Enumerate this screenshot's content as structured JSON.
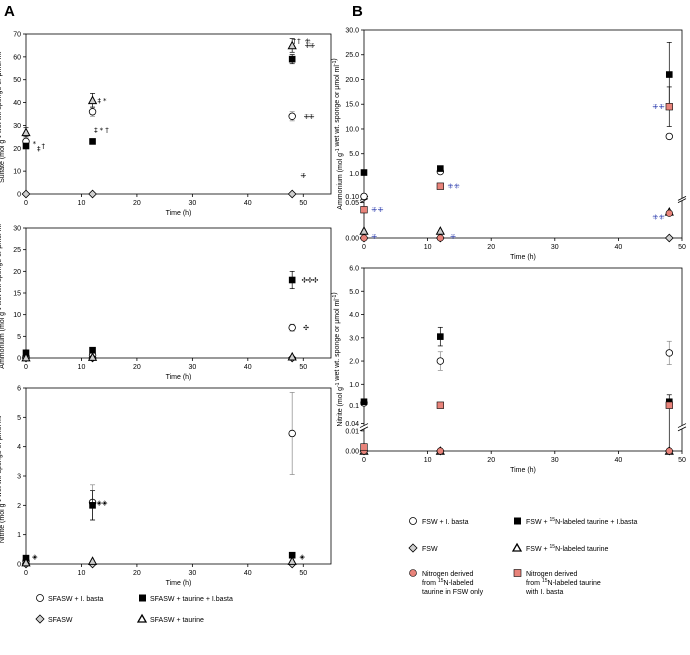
{
  "panels": {
    "A": "A",
    "B": "B"
  },
  "colors": {
    "salmon": "#e8837a",
    "grey": "#cfcfcf",
    "black": "#000000",
    "mark_blue": "#2233aa"
  },
  "chart_data": [
    {
      "id": "A1",
      "type": "scatter",
      "title": "",
      "xlabel": "Time (h)",
      "ylabel": "Sulfate (mol g-1 wet wt. sponge or μmol ml-1)",
      "xlim": [
        0,
        55
      ],
      "ylim": [
        0,
        70
      ],
      "xticks": [
        0,
        10,
        20,
        30,
        40,
        50
      ],
      "yticks": [
        0,
        10,
        20,
        30,
        40,
        50,
        60,
        70
      ],
      "series": [
        {
          "name": "SFASW + I. basta",
          "marker": "circle",
          "points": [
            [
              0,
              23,
              2
            ],
            [
              12,
              36,
              2
            ],
            [
              48,
              34,
              2
            ]
          ]
        },
        {
          "name": "SFASW + taurine + I.basta",
          "marker": "square",
          "points": [
            [
              0,
              21,
              1
            ],
            [
              12,
              23,
              1
            ],
            [
              48,
              59,
              2
            ]
          ]
        },
        {
          "name": "SFASW",
          "marker": "diamond",
          "points": [
            [
              0,
              0,
              0
            ],
            [
              12,
              0,
              0
            ],
            [
              48,
              0,
              0
            ]
          ]
        },
        {
          "name": "SFASW + taurine",
          "marker": "triangle",
          "points": [
            [
              0,
              27,
              2
            ],
            [
              12,
              41,
              3
            ],
            [
              48,
              65,
              3
            ]
          ]
        }
      ],
      "annotations": [
        {
          "text": "*",
          "x": 1.5,
          "y": 22
        },
        {
          "text": "‡",
          "x": 2.3,
          "y": 20
        },
        {
          "text": "†",
          "x": 3.1,
          "y": 21
        },
        {
          "text": "‡",
          "x": 13.2,
          "y": 41
        },
        {
          "text": "*",
          "x": 14.2,
          "y": 41
        },
        {
          "text": "‡",
          "x": 12.6,
          "y": 28
        },
        {
          "text": "*",
          "x": 13.6,
          "y": 28
        },
        {
          "text": "†",
          "x": 14.6,
          "y": 28
        },
        {
          "text": "†",
          "x": 48.4,
          "y": 67
        },
        {
          "text": "†",
          "x": 49.2,
          "y": 67
        },
        {
          "text": "⁜",
          "x": 50.8,
          "y": 67
        },
        {
          "text": "⁜",
          "x": 50.8,
          "y": 65
        },
        {
          "text": "⁜",
          "x": 51.6,
          "y": 65
        },
        {
          "text": "⁜",
          "x": 50.6,
          "y": 34
        },
        {
          "text": "⁜",
          "x": 51.5,
          "y": 34
        },
        {
          "text": "⁜",
          "x": 50,
          "y": 8
        }
      ]
    },
    {
      "id": "A2",
      "type": "scatter",
      "title": "",
      "xlabel": "Time (h)",
      "ylabel": "Ammonium (mol g-1 wet wt. sponge or μmol ml-1)",
      "xlim": [
        0,
        55
      ],
      "ylim": [
        0,
        30
      ],
      "xticks": [
        0,
        10,
        20,
        30,
        40,
        50
      ],
      "yticks": [
        0,
        5,
        10,
        15,
        20,
        25,
        30
      ],
      "series": [
        {
          "name": "SFASW + I. basta",
          "marker": "circle",
          "points": [
            [
              0,
              0.3,
              0
            ],
            [
              12,
              0.6,
              0
            ],
            [
              48,
              7,
              0.8
            ]
          ]
        },
        {
          "name": "SFASW + taurine + I.basta",
          "marker": "square",
          "points": [
            [
              0,
              1.2,
              0
            ],
            [
              12,
              1.8,
              0
            ],
            [
              48,
              18,
              2
            ]
          ]
        },
        {
          "name": "SFASW",
          "marker": "diamond",
          "points": [
            [
              0,
              0,
              0
            ],
            [
              12,
              0,
              0
            ],
            [
              48,
              0,
              0
            ]
          ]
        },
        {
          "name": "SFASW + taurine",
          "marker": "triangle",
          "points": [
            [
              0,
              0.1,
              0
            ],
            [
              12,
              0.2,
              0
            ],
            [
              48,
              0.3,
              0
            ]
          ]
        }
      ],
      "annotations": [
        {
          "text": "✣",
          "x": 50.5,
          "y": 7
        },
        {
          "text": "✣",
          "x": 50.2,
          "y": 18
        },
        {
          "text": "✣",
          "x": 51.2,
          "y": 18
        },
        {
          "text": "✣",
          "x": 52.2,
          "y": 18
        }
      ]
    },
    {
      "id": "A3",
      "type": "scatter",
      "title": "",
      "xlabel": "Time (h)",
      "ylabel": "Nitrite (mol g-1 wet wt. sponge or μmol ml-1)",
      "xlim": [
        0,
        55
      ],
      "ylim": [
        0,
        6
      ],
      "xticks": [
        0,
        10,
        20,
        30,
        40,
        50
      ],
      "yticks": [
        0,
        1,
        2,
        3,
        4,
        5,
        6
      ],
      "series": [
        {
          "name": "SFASW + I. basta",
          "marker": "circle",
          "points": [
            [
              0,
              0.1,
              0
            ],
            [
              12,
              2.1,
              0.6
            ],
            [
              48,
              4.45,
              1.4
            ]
          ]
        },
        {
          "name": "SFASW + taurine + I.basta",
          "marker": "square",
          "points": [
            [
              0,
              0.2,
              0
            ],
            [
              12,
              2.0,
              0.5
            ],
            [
              48,
              0.3,
              0
            ]
          ]
        },
        {
          "name": "SFASW",
          "marker": "diamond",
          "points": [
            [
              0,
              0,
              0
            ],
            [
              12,
              0,
              0
            ],
            [
              48,
              0,
              0
            ]
          ]
        },
        {
          "name": "SFASW + taurine",
          "marker": "triangle",
          "points": [
            [
              0,
              0.05,
              0
            ],
            [
              12,
              0.1,
              0
            ],
            [
              48,
              0.1,
              0
            ]
          ]
        }
      ],
      "annotations": [
        {
          "text": "◈",
          "x": 1.6,
          "y": 0.25
        },
        {
          "text": "◈",
          "x": 13.2,
          "y": 2.1
        },
        {
          "text": "◈",
          "x": 14.2,
          "y": 2.1
        },
        {
          "text": "◈",
          "x": 49.8,
          "y": 0.25
        }
      ]
    },
    {
      "id": "B1",
      "type": "scatter",
      "title": "",
      "xlabel": "Time (h)",
      "ylabel": "Ammonium (mol g-1 wet wt. sponge or μmol ml-1)",
      "xlim": [
        0,
        50
      ],
      "ylim": [
        0,
        30
      ],
      "axis_break": [
        0.05,
        0.1
      ],
      "xticks": [
        0,
        10,
        20,
        30,
        40,
        50
      ],
      "yticks": [
        "0.00",
        "0.05",
        "0.10",
        "1.0",
        "5.0",
        "10.0",
        "15.0",
        "20.0",
        "25.0",
        "30.0"
      ],
      "series": [
        {
          "name": "FSW + I. basta",
          "marker": "circle",
          "points": [
            [
              0,
              0.1,
              0
            ],
            [
              12,
              1.4,
              0
            ],
            [
              48,
              8.5,
              0
            ]
          ]
        },
        {
          "name": "FSW + 15N-labeled taurine + I.basta",
          "marker": "square",
          "points": [
            [
              0,
              1.2,
              0
            ],
            [
              12,
              2.0,
              0
            ],
            [
              48,
              21,
              6.5
            ]
          ]
        },
        {
          "name": "FSW",
          "marker": "diamond",
          "points": [
            [
              0,
              0,
              0
            ],
            [
              12,
              0,
              0
            ],
            [
              48,
              0,
              0
            ]
          ]
        },
        {
          "name": "FSW + 15N-labeled taurine",
          "marker": "triangle",
          "points": [
            [
              0,
              0.01,
              0
            ],
            [
              12,
              0.01,
              0
            ],
            [
              48,
              0.037,
              0
            ]
          ]
        },
        {
          "name": "Nitrogen derived from 15N-labeled taurine in FSW only",
          "marker": "salmon-circle",
          "points": [
            [
              0,
              0,
              0
            ],
            [
              12,
              0,
              0
            ],
            [
              48,
              0.035,
              0
            ]
          ]
        },
        {
          "name": "Nitrogen derived from 15N-labeled taurine with I. basta",
          "marker": "salmon-square",
          "points": [
            [
              0,
              0.04,
              0
            ],
            [
              12,
              0.5,
              0
            ],
            [
              48,
              14.5,
              4
            ]
          ]
        }
      ],
      "annotations": [
        {
          "text": "⁜",
          "x": 1.6,
          "y": 0.04
        },
        {
          "text": "⁜",
          "x": 2.6,
          "y": 0.04
        },
        {
          "text": "⁜",
          "x": 1.6,
          "y": 0.002
        },
        {
          "text": "⁜",
          "x": 13.6,
          "y": 0.5
        },
        {
          "text": "⁜",
          "x": 14.6,
          "y": 0.5
        },
        {
          "text": "⁜",
          "x": 14.0,
          "y": 0.002
        },
        {
          "text": "⁜",
          "x": 45.8,
          "y": 14.5
        },
        {
          "text": "⁜",
          "x": 46.8,
          "y": 14.5
        },
        {
          "text": "⁜",
          "x": 45.8,
          "y": 0.03
        },
        {
          "text": "⁜",
          "x": 46.8,
          "y": 0.03
        }
      ]
    },
    {
      "id": "B2",
      "type": "scatter",
      "title": "",
      "xlabel": "Time (h)",
      "ylabel": "Nitrite (mol g-1 wet wt. sponge or μmol ml-1)",
      "xlim": [
        0,
        50
      ],
      "ylim": [
        0,
        6
      ],
      "axis_break": [
        0.01,
        0.04
      ],
      "xticks": [
        0,
        10,
        20,
        30,
        40,
        50
      ],
      "yticks": [
        "0.00",
        "0.01",
        "0.04",
        "0.1",
        "1.0",
        "2.0",
        "3.0",
        "4.0",
        "5.0",
        "6.0"
      ],
      "series": [
        {
          "name": "FSW + I. basta",
          "marker": "circle",
          "points": [
            [
              0,
              0.2,
              0
            ],
            [
              12,
              2.0,
              0.4
            ],
            [
              48,
              2.35,
              0.5
            ]
          ]
        },
        {
          "name": "FSW + 15N-labeled taurine + I.basta",
          "marker": "square",
          "points": [
            [
              0,
              0.25,
              0
            ],
            [
              12,
              3.05,
              0.4
            ],
            [
              48,
              0.25,
              0.3
            ]
          ]
        },
        {
          "name": "FSW",
          "marker": "diamond",
          "points": [
            [
              0,
              0,
              0
            ],
            [
              12,
              0,
              0
            ],
            [
              48,
              0,
              0
            ]
          ]
        },
        {
          "name": "FSW + 15N-labeled taurine",
          "marker": "triangle",
          "points": [
            [
              0,
              0,
              0
            ],
            [
              12,
              0,
              0
            ],
            [
              48,
              0,
              0
            ]
          ]
        },
        {
          "name": "Nitrogen derived from 15N-labeled taurine in FSW only",
          "marker": "salmon-circle",
          "points": [
            [
              0,
              0,
              0
            ],
            [
              12,
              0,
              0
            ],
            [
              48,
              0,
              0
            ]
          ]
        },
        {
          "name": "Nitrogen derived from 15N-labeled taurine with I. basta",
          "marker": "salmon-square",
          "points": [
            [
              0,
              0.002,
              0
            ],
            [
              12,
              0.1,
              0
            ],
            [
              48,
              0.1,
              0
            ]
          ]
        }
      ],
      "annotations": []
    }
  ],
  "legendA": {
    "circle": "SFASW + I. basta",
    "square": "SFASW + taurine + I.basta",
    "diamond": "SFASW",
    "triangle": "SFASW + taurine"
  },
  "legendB": {
    "circle": "FSW + I. basta",
    "square_pre": "FSW + ",
    "square_sup": "15",
    "square_post": "N-labeled taurine + I.basta",
    "diamond": "FSW",
    "triangle_pre": "FSW + ",
    "triangle_sup": "15",
    "triangle_post": "N-labeled taurine",
    "salmon_circle_l1": "Nitrogen derived",
    "salmon_circle_l2_pre": "from ",
    "salmon_circle_l2_sup": "15",
    "salmon_circle_l2_post": "N-labeled",
    "salmon_circle_l3": "taurine in FSW only",
    "salmon_square_l1": "Nitrogen derived",
    "salmon_square_l2_pre": "from ",
    "salmon_square_l2_sup": "15",
    "salmon_square_l2_post": "N-labeled taurine",
    "salmon_square_l3": "with I. basta"
  }
}
